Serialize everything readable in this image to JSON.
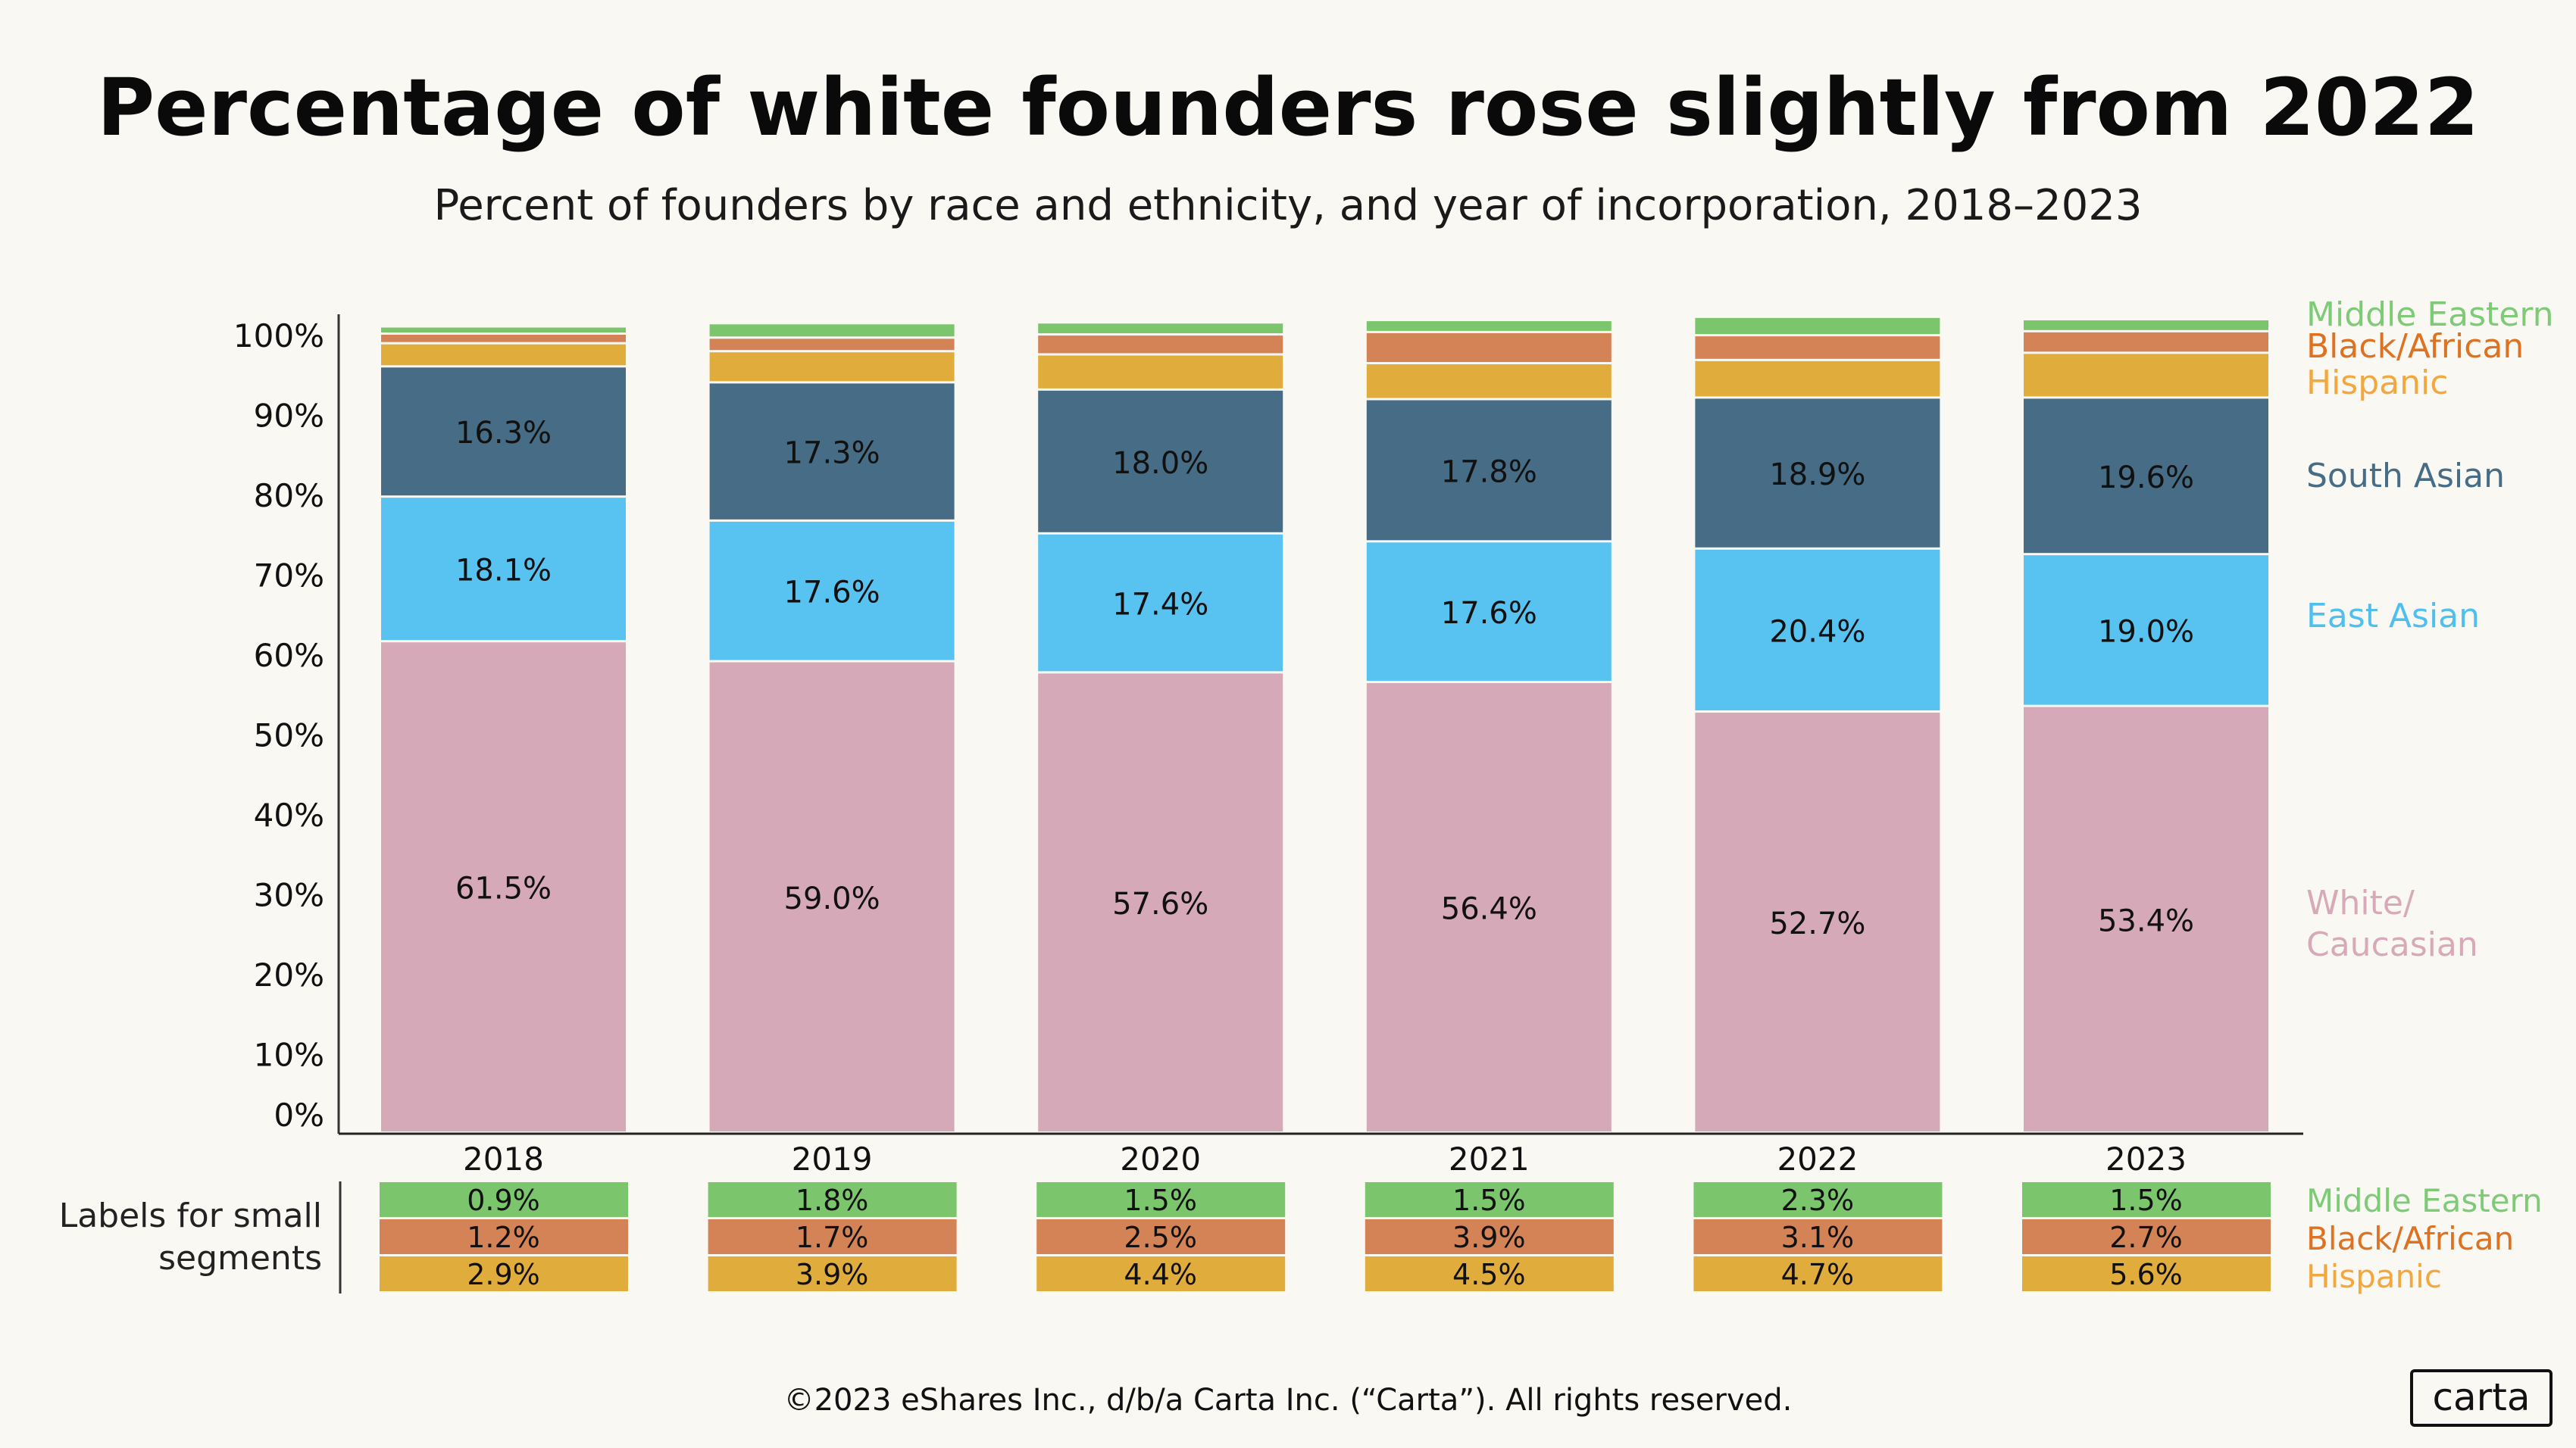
{
  "title": "Percentage of white founders rose slightly from 2022",
  "subtitle": "Percent of founders by race and ethnicity, and year of incorporation, 2018–2023",
  "footer": "©2023 eShares Inc., d/b/a Carta Inc. (“Carta”). All rights reserved.",
  "logo": "carta",
  "small_labels_caption": [
    "Labels for small",
    "segments"
  ],
  "chart_data": {
    "type": "bar",
    "stacked": true,
    "categories": [
      "2018",
      "2019",
      "2020",
      "2021",
      "2022",
      "2023"
    ],
    "ylim": [
      0,
      100
    ],
    "yticks": [
      "0%",
      "10%",
      "20%",
      "30%",
      "40%",
      "50%",
      "60%",
      "70%",
      "80%",
      "90%",
      "100%"
    ],
    "grid": false,
    "legend": "right",
    "series": [
      {
        "name": "White/ Caucasian",
        "legend_lines": [
          "White/",
          "Caucasian"
        ],
        "color": "#d6a9b8",
        "legend_color": "#d8a9b8",
        "values": [
          61.5,
          59.0,
          57.6,
          56.4,
          52.7,
          53.4
        ],
        "labels": [
          "61.5%",
          "59.0%",
          "57.6%",
          "56.4%",
          "52.7%",
          "53.4%"
        ]
      },
      {
        "name": "East Asian",
        "legend_lines": [
          "East Asian"
        ],
        "color": "#58c3f0",
        "legend_color": "#4fbfee",
        "values": [
          18.1,
          17.6,
          17.4,
          17.6,
          20.4,
          19.0
        ],
        "labels": [
          "18.1%",
          "17.6%",
          "17.4%",
          "17.6%",
          "20.4%",
          "19.0%"
        ]
      },
      {
        "name": "South Asian",
        "legend_lines": [
          "South Asian"
        ],
        "color": "#476c85",
        "legend_color": "#476c85",
        "values": [
          16.3,
          17.3,
          18.0,
          17.8,
          18.9,
          19.6
        ],
        "labels": [
          "16.3%",
          "17.3%",
          "18.0%",
          "17.8%",
          "18.9%",
          "19.6%"
        ]
      },
      {
        "name": "Hispanic",
        "legend_lines": [
          "Hispanic"
        ],
        "color": "#e0ad3d",
        "legend_color": "#f3a83f",
        "values": [
          2.9,
          3.9,
          4.4,
          4.5,
          4.7,
          5.6
        ],
        "labels": [
          "2.9%",
          "3.9%",
          "4.4%",
          "4.5%",
          "4.7%",
          "5.6%"
        ]
      },
      {
        "name": "Black/African",
        "legend_lines": [
          "Black/African"
        ],
        "color": "#d48356",
        "legend_color": "#dc7222",
        "values": [
          1.2,
          1.7,
          2.5,
          3.9,
          3.1,
          2.7
        ],
        "labels": [
          "1.2%",
          "1.7%",
          "2.5%",
          "3.9%",
          "3.1%",
          "2.7%"
        ]
      },
      {
        "name": "Middle Eastern",
        "legend_lines": [
          "Middle Eastern"
        ],
        "color": "#7bc66c",
        "legend_color": "#7ecb77",
        "values": [
          0.9,
          1.8,
          1.5,
          1.5,
          2.3,
          1.5
        ],
        "labels": [
          "0.9%",
          "1.8%",
          "1.5%",
          "1.5%",
          "2.3%",
          "1.5%"
        ]
      }
    ]
  }
}
